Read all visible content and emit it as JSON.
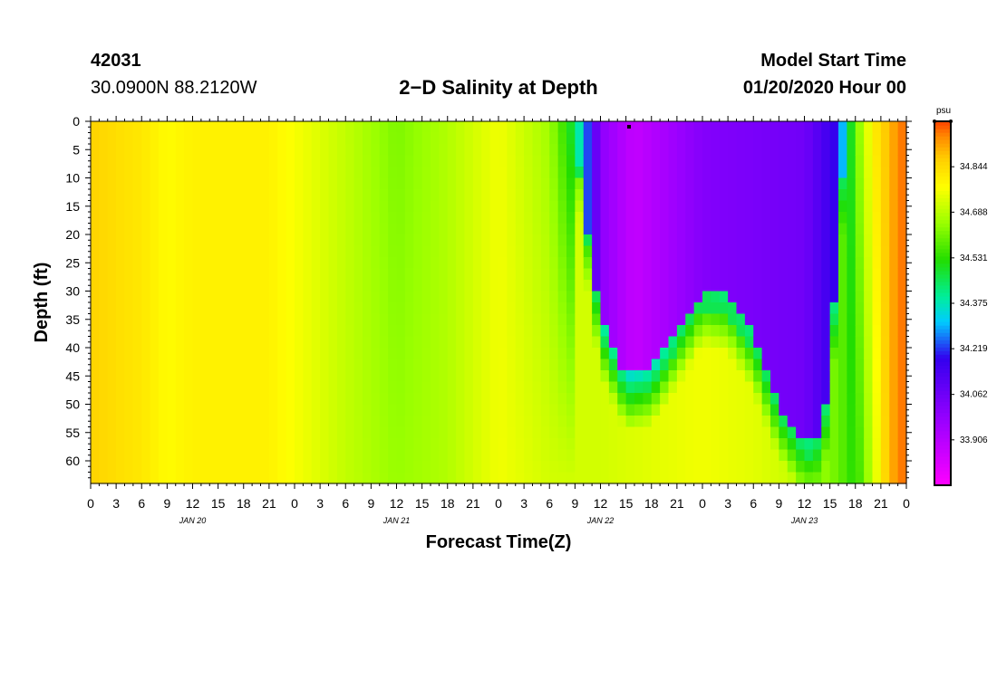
{
  "header": {
    "station_id": "42031",
    "location": "30.0900N 88.2120W",
    "title": "2−D Salinity at Depth",
    "model_label": "Model Start Time",
    "model_time": "01/20/2020 Hour 00"
  },
  "chart_data": {
    "type": "heatmap",
    "title": "2−D Salinity at Depth",
    "xlabel": "Forecast Time(Z)",
    "ylabel": "Depth (ft)",
    "x_hours_range": [
      0,
      96
    ],
    "y_range": [
      0,
      64
    ],
    "y_reversed": true,
    "x_tick_labels": [
      "0",
      "3",
      "6",
      "9",
      "12",
      "15",
      "18",
      "21",
      "0",
      "3",
      "6",
      "9",
      "12",
      "15",
      "18",
      "21",
      "0",
      "3",
      "6",
      "9",
      "12",
      "15",
      "18",
      "21",
      "0",
      "3",
      "6",
      "9",
      "12",
      "15",
      "18",
      "21",
      "0"
    ],
    "y_tick_labels": [
      "0",
      "5",
      "10",
      "15",
      "20",
      "25",
      "30",
      "35",
      "40",
      "45",
      "50",
      "55",
      "60"
    ],
    "day_labels": [
      "JAN 20",
      "JAN 21",
      "JAN 22",
      "JAN 23"
    ],
    "colorbar": {
      "unit": "psu",
      "range": [
        33.75,
        35.0
      ],
      "tick_labels": [
        "34.844",
        "34.688",
        "34.531",
        "34.375",
        "34.219",
        "34.062",
        "33.906"
      ],
      "tick_values": [
        34.844,
        34.688,
        34.531,
        34.375,
        34.219,
        34.062,
        33.906
      ]
    },
    "surface_salinity_by_hour": [
      [
        0,
        34.86
      ],
      [
        6,
        34.82
      ],
      [
        9,
        34.78
      ],
      [
        12,
        34.8
      ],
      [
        21,
        34.8
      ],
      [
        30,
        34.7
      ],
      [
        36,
        34.62
      ],
      [
        42,
        34.68
      ],
      [
        48,
        34.76
      ],
      [
        54,
        34.66
      ],
      [
        57,
        34.46
      ],
      [
        60,
        34.0
      ],
      [
        64,
        33.88
      ],
      [
        72,
        34.02
      ],
      [
        84,
        34.06
      ],
      [
        88,
        34.2
      ],
      [
        89,
        34.4
      ],
      [
        90,
        34.6
      ],
      [
        92,
        34.8
      ],
      [
        94,
        34.9
      ],
      [
        96,
        34.98
      ]
    ],
    "bottom_salinity_by_hour": [
      [
        0,
        34.86
      ],
      [
        6,
        34.82
      ],
      [
        9,
        34.78
      ],
      [
        12,
        34.8
      ],
      [
        21,
        34.8
      ],
      [
        30,
        34.7
      ],
      [
        36,
        34.65
      ],
      [
        42,
        34.68
      ],
      [
        48,
        34.76
      ],
      [
        54,
        34.72
      ],
      [
        60,
        34.72
      ],
      [
        66,
        34.74
      ],
      [
        72,
        34.76
      ],
      [
        78,
        34.74
      ],
      [
        84,
        34.7
      ],
      [
        88,
        34.6
      ],
      [
        90,
        34.52
      ],
      [
        92,
        34.7
      ],
      [
        94,
        34.9
      ],
      [
        96,
        34.98
      ]
    ],
    "low_salinity_bottom_depth_by_hour": [
      [
        57,
        0
      ],
      [
        58,
        15
      ],
      [
        60,
        35
      ],
      [
        63,
        45
      ],
      [
        66,
        44
      ],
      [
        69,
        37
      ],
      [
        72,
        30
      ],
      [
        75,
        31
      ],
      [
        78,
        38
      ],
      [
        81,
        50
      ],
      [
        84,
        57
      ],
      [
        86,
        55
      ],
      [
        87,
        45
      ],
      [
        88,
        20
      ],
      [
        89,
        0
      ]
    ]
  }
}
